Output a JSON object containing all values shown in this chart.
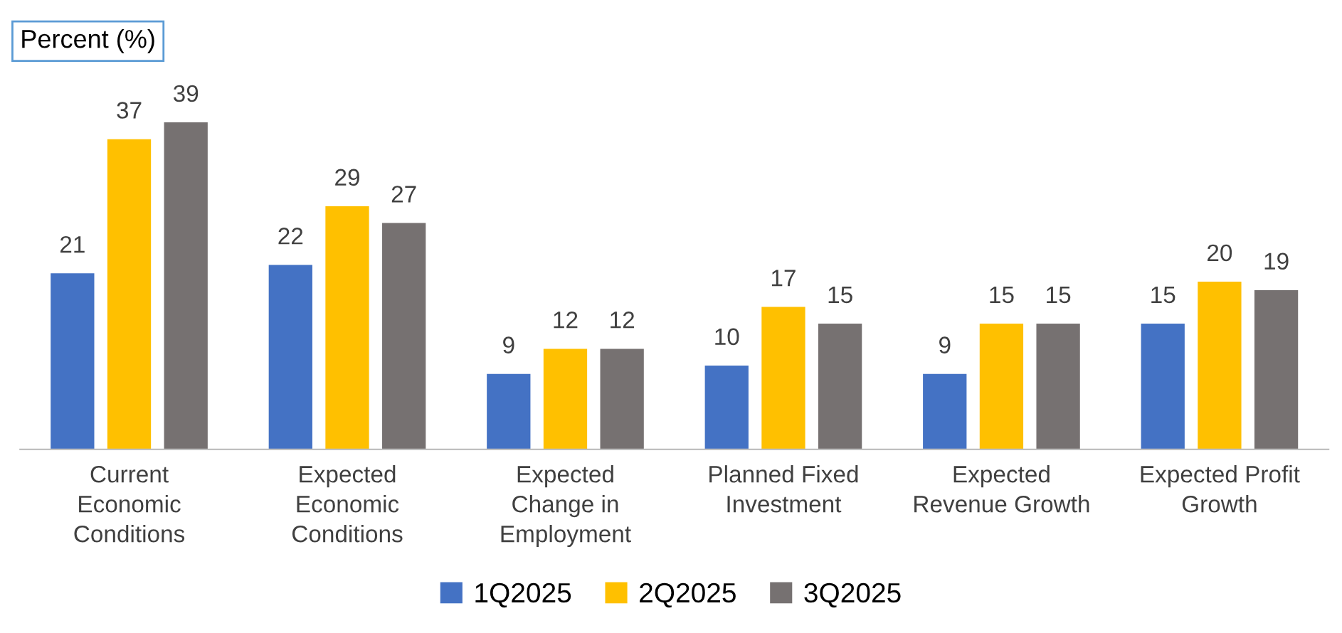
{
  "chart_data": {
    "type": "bar",
    "ylabel": "Percent (%)",
    "categories": [
      "Current\nEconomic\nConditions",
      "Expected\nEconomic\nConditions",
      "Expected\nChange in\nEmployment",
      "Planned Fixed\nInvestment",
      "Expected\nRevenue Growth",
      "Expected Profit\nGrowth"
    ],
    "series": [
      {
        "name": "1Q2025",
        "color": "#4472c4",
        "values": [
          21,
          22,
          9,
          10,
          9,
          15
        ]
      },
      {
        "name": "2Q2025",
        "color": "#ffc000",
        "values": [
          37,
          29,
          12,
          17,
          15,
          20
        ]
      },
      {
        "name": "3Q2025",
        "color": "#767171",
        "values": [
          39,
          27,
          12,
          15,
          15,
          19
        ]
      }
    ],
    "data_labels": true,
    "legend": "bottom"
  }
}
